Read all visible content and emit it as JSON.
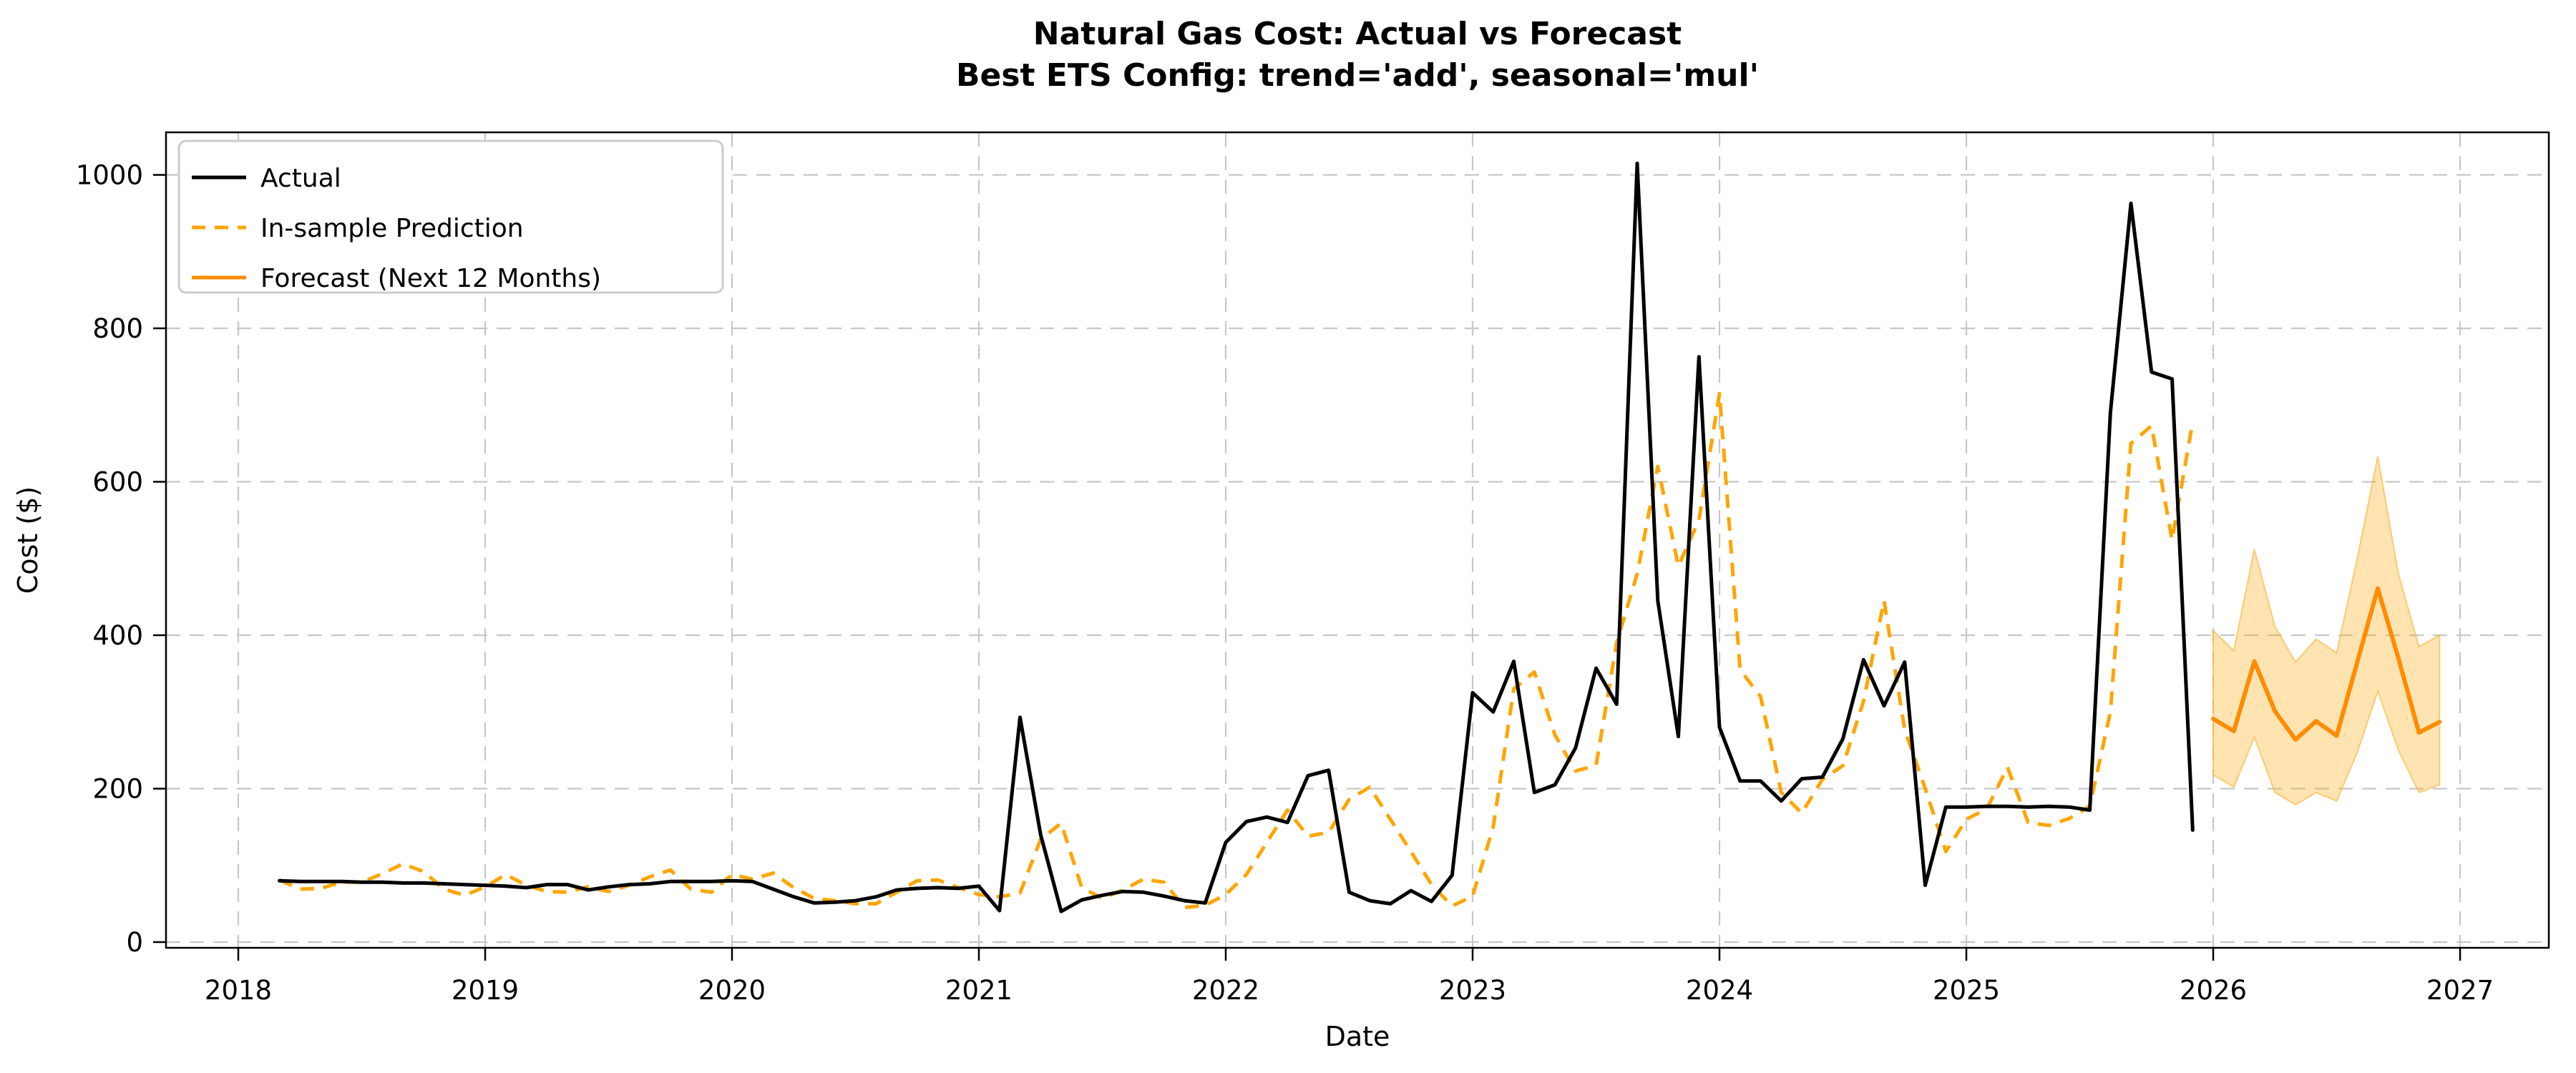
{
  "title": {
    "line1": "Natural Gas Cost: Actual vs Forecast",
    "line2": "Best ETS Config: trend='add', seasonal='mul'"
  },
  "axes": {
    "xlabel": "Date",
    "ylabel": "Cost ($)",
    "x_tick_labels": [
      "2018",
      "2019",
      "2020",
      "2021",
      "2022",
      "2023",
      "2024",
      "2025",
      "2026",
      "2027"
    ],
    "y_tick_labels": [
      "0",
      "200",
      "400",
      "600",
      "800",
      "1000"
    ]
  },
  "legend": {
    "items": [
      {
        "label": "Actual",
        "color": "#000000",
        "style": "solid"
      },
      {
        "label": "In-sample Prediction",
        "color": "#FFA500",
        "style": "dashed"
      },
      {
        "label": "Forecast (Next 12 Months)",
        "color": "#FF8C00",
        "style": "solid"
      }
    ]
  },
  "colors": {
    "actual": "#000000",
    "insample": "#FFA500",
    "forecast": "#FF8C00",
    "band_fill": "rgba(255,165,0,0.30)",
    "band_edge": "rgba(255,180,60,0.65)",
    "grid": "#c7c7c7",
    "spine": "#000000"
  },
  "chart_data": {
    "type": "line",
    "title": "Natural Gas Cost: Actual vs Forecast — Best ETS Config: trend='add', seasonal='mul'",
    "xlabel": "Date",
    "ylabel": "Cost ($)",
    "grid": true,
    "legend_position": "upper left",
    "x_unit": "months since 2018-01 (monthly data)",
    "x_year_ticks": [
      2018,
      2019,
      2020,
      2021,
      2022,
      2023,
      2024,
      2025,
      2026,
      2027
    ],
    "ylim": [
      -8,
      1053
    ],
    "xlim_months": [
      -3.5,
      112.3
    ],
    "series": [
      {
        "name": "Actual",
        "start": "2018-03",
        "start_month_index": 2,
        "values": [
          80,
          79,
          79,
          79,
          78,
          78,
          77,
          77,
          76,
          75,
          74,
          73,
          71,
          75,
          75,
          68,
          72,
          75,
          76,
          79,
          79,
          79,
          80,
          79,
          69,
          59,
          51,
          52,
          54,
          59,
          68,
          70,
          71,
          70,
          73,
          41,
          293,
          140,
          40,
          55,
          61,
          66,
          65,
          60,
          54,
          51,
          130,
          157,
          163,
          156,
          217,
          224,
          65,
          54,
          50,
          67,
          53,
          87,
          325,
          300,
          366,
          195,
          205,
          253,
          357,
          310,
          1015,
          445,
          268,
          763,
          280,
          210,
          210,
          184,
          213,
          215,
          265,
          368,
          308,
          365,
          74,
          176,
          176,
          177,
          177,
          176,
          177,
          176,
          172,
          690,
          963,
          743,
          734,
          146
        ]
      },
      {
        "name": "In-sample Prediction",
        "start": "2018-03",
        "start_month_index": 2,
        "values": [
          81,
          69,
          70,
          78,
          78,
          89,
          102,
          92,
          69,
          61,
          72,
          88,
          74,
          66,
          65,
          72,
          66,
          74,
          85,
          94,
          69,
          65,
          88,
          82,
          90,
          71,
          57,
          54,
          50,
          50,
          65,
          80,
          81,
          71,
          62,
          59,
          64,
          134,
          155,
          71,
          57,
          68,
          82,
          78,
          45,
          48,
          62,
          88,
          130,
          172,
          138,
          143,
          186,
          202,
          160,
          118,
          75,
          47,
          60,
          150,
          330,
          352,
          270,
          223,
          230,
          390,
          480,
          620,
          490,
          550,
          715,
          355,
          320,
          195,
          168,
          212,
          230,
          314,
          445,
          277,
          200,
          118,
          160,
          174,
          228,
          156,
          152,
          161,
          177,
          300,
          650,
          673,
          524,
          678
        ]
      },
      {
        "name": "Forecast (Next 12 Months)",
        "start": "2026-01",
        "start_month_index": 96,
        "values": [
          291,
          275,
          366,
          301,
          264,
          288,
          269,
          365,
          461,
          370,
          273,
          287
        ],
        "ci_upper": [
          406,
          380,
          512,
          411,
          365,
          395,
          377,
          500,
          633,
          480,
          385,
          400
        ],
        "ci_lower": [
          218,
          202,
          267,
          195,
          179,
          195,
          184,
          247,
          327,
          250,
          195,
          205
        ]
      }
    ]
  }
}
